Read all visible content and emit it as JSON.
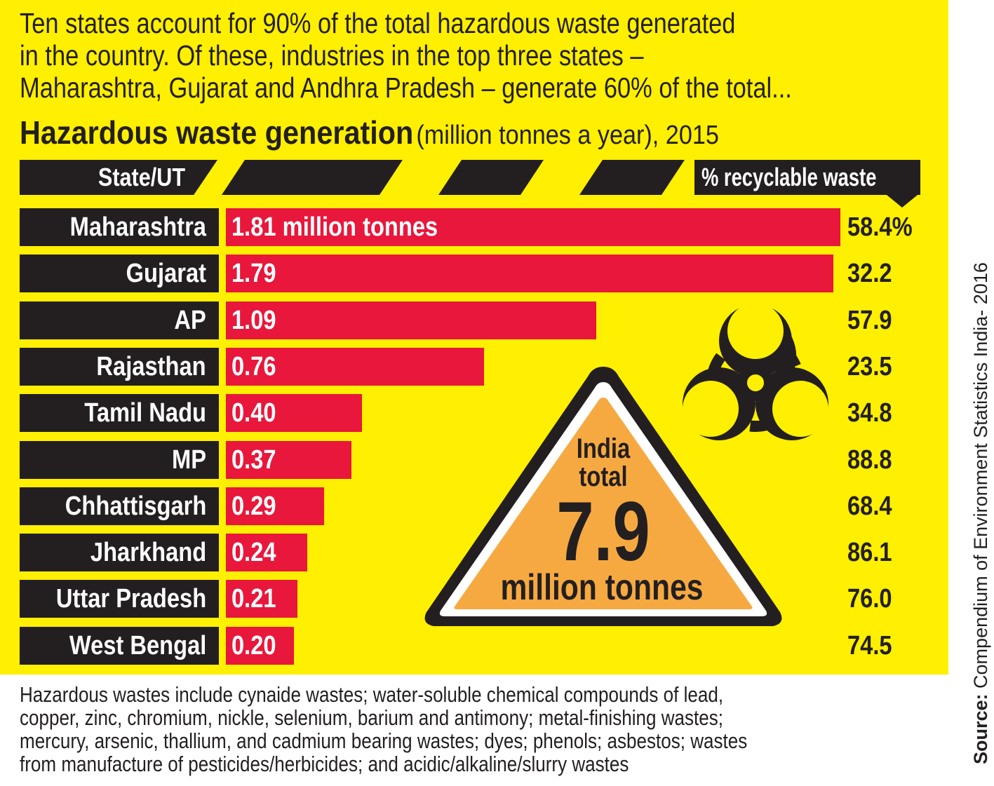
{
  "intro_lines": [
    "Ten states account for 90% of the total hazardous waste generated",
    "in the country. Of these, industries in the top three states –",
    "Maharashtra, Gujarat and Andhra Pradesh – generate 60% of the total..."
  ],
  "chart_title": "Hazardous waste generation",
  "chart_subtitle": "(million tonnes a year), 2015",
  "header_left": "State/UT",
  "header_right": "% recyclable waste",
  "india_total_label": "India total",
  "india_total_value": "7.9",
  "india_total_unit": "million tonnes",
  "footnote_lines": [
    "Hazardous wastes include cynaide wastes; water-soluble chemical compounds of lead,",
    "copper, zinc, chromium, nickle, selenium, barium and antimony; metal-finishing wastes;",
    "mercury, arsenic, thallium, and cadmium bearing wastes; dyes; phenols; asbestos; wastes",
    "from manufacture of pesticides/herbicides; and acidic/alkaline/slurry wastes"
  ],
  "source_label": "Source:",
  "source_text": "Compendium of Environment Statistics India- 2016",
  "colors": {
    "background": "#ffef00",
    "bar": "#e8173b",
    "dark": "#231f20",
    "triangle_fill": "#f7a941"
  },
  "chart_data": {
    "type": "bar",
    "orientation": "horizontal",
    "title": "Hazardous waste generation",
    "subtitle": "(million tonnes a year), 2015",
    "categories": [
      "Maharashtra",
      "Gujarat",
      "AP",
      "Rajasthan",
      "Tamil Nadu",
      "MP",
      "Chhattisgarh",
      "Jharkhand",
      "Uttar Pradesh",
      "West Bengal"
    ],
    "values": [
      1.81,
      1.79,
      1.09,
      0.76,
      0.4,
      0.37,
      0.29,
      0.24,
      0.21,
      0.2
    ],
    "value_labels": [
      "1.81 million tonnes",
      "1.79",
      "1.09",
      "0.76",
      "0.40",
      "0.37",
      "0.29",
      "0.24",
      "0.21",
      "0.20"
    ],
    "recyclable_pct": [
      58.4,
      32.2,
      57.9,
      23.5,
      34.8,
      88.8,
      68.4,
      86.1,
      76.0,
      74.5
    ],
    "recyclable_labels": [
      "58.4%",
      "32.2",
      "57.9",
      "23.5",
      "34.8",
      "88.8",
      "68.4",
      "86.1",
      "76.0",
      "74.5"
    ],
    "xlim": [
      0,
      1.81
    ],
    "grid": false
  }
}
